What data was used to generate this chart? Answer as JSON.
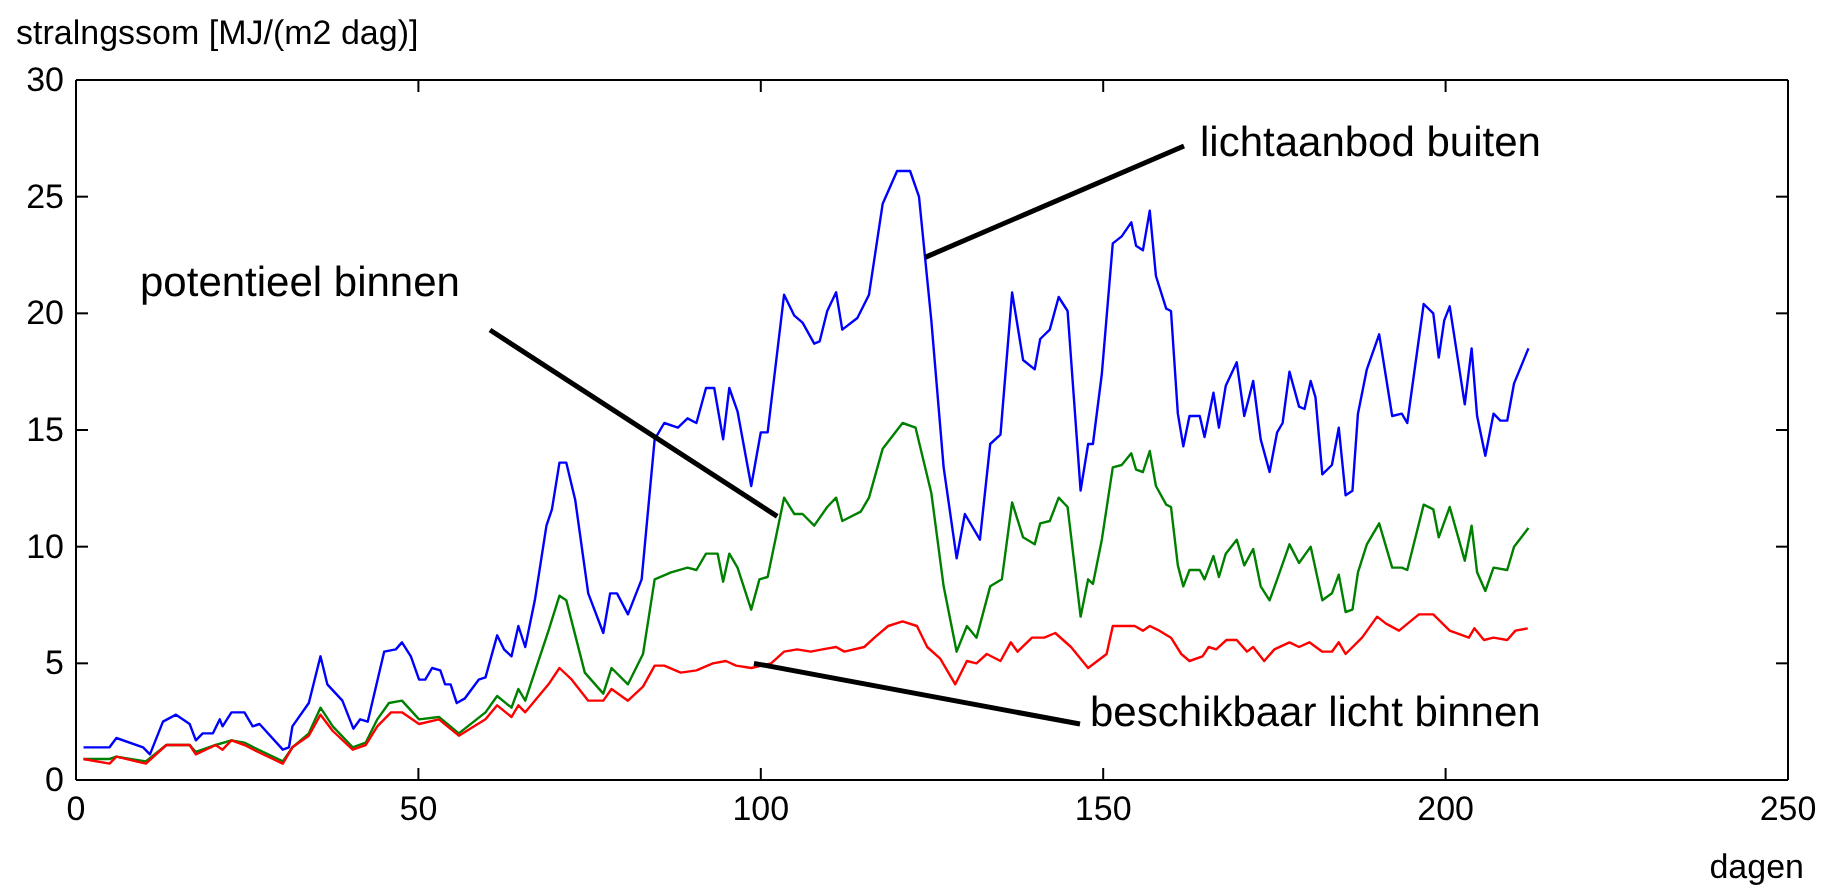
{
  "chart_data": {
    "type": "line",
    "ylabel": "stralngssom [MJ/(m2 dag)]",
    "xlabel": "dagen",
    "xlim": [
      0,
      250
    ],
    "xticks": [
      0,
      50,
      100,
      150,
      200,
      250
    ],
    "ylim": [
      0,
      30
    ],
    "yticks": [
      0,
      5,
      10,
      15,
      20,
      25,
      30
    ],
    "grid": false,
    "series": [
      {
        "color": "#0000ff",
        "x": [
          1.1,
          4.9,
          5.9,
          9.8,
          10.8,
          12.7,
          14.6,
          16.6,
          17.5,
          18.5,
          20,
          21,
          21.4,
          22.7,
          24.6,
          25.8,
          26.8,
          30.2,
          31.1,
          31.6,
          34,
          35.7,
          36.7,
          38.9,
          40.5,
          41.5,
          42.6,
          45,
          46.7,
          47.6,
          48.9,
          50.1,
          51,
          52,
          53.2,
          53.9,
          54.7,
          55.6,
          56.8,
          58.8,
          59.8,
          61.5,
          62.5,
          63.6,
          64.6,
          65.6,
          67,
          68.7,
          69.5,
          70.6,
          71.6,
          72.9,
          74.8,
          77,
          78,
          79,
          80.6,
          82.6,
          84.5,
          85.9,
          87.9,
          89.3,
          90.6,
          92,
          93.2,
          94.5,
          95.4,
          96.6,
          98.6,
          100,
          101,
          103.4,
          104.9,
          106.1,
          107.8,
          108.6,
          109.7,
          111,
          111.9,
          114.1,
          115.8,
          117.8,
          119.9,
          121.8,
          123.1,
          124.9,
          126.7,
          128.6,
          129.8,
          132,
          133.5,
          135,
          136.7,
          138.3,
          140,
          140.8,
          142.2,
          143.5,
          144.8,
          146.7,
          147.8,
          148.5,
          149.8,
          151.4,
          152.7,
          154.1,
          154.8,
          155.8,
          156.8,
          157.7,
          159.2,
          159.9,
          160.9,
          161.7,
          162.6,
          164.1,
          164.8,
          166.1,
          166.9,
          167.9,
          169.5,
          170.6,
          171.9,
          173,
          174.3,
          175.4,
          176.2,
          177.2,
          178.6,
          179.4,
          180.3,
          181,
          182,
          183.4,
          184.4,
          185.4,
          186.4,
          187.2,
          188.5,
          190.3,
          192.2,
          193.6,
          194.4,
          196.8,
          198.2,
          199,
          199.8,
          200.6,
          202.8,
          203.8,
          204.6,
          205.8,
          207,
          208,
          209,
          210,
          212.1
        ],
        "values": [
          1.4,
          1.4,
          1.8,
          1.4,
          1.1,
          2.5,
          2.8,
          2.4,
          1.7,
          2,
          2,
          2.6,
          2.3,
          2.9,
          2.9,
          2.3,
          2.4,
          1.3,
          1.4,
          2.3,
          3.3,
          5.3,
          4.1,
          3.4,
          2.2,
          2.6,
          2.5,
          5.5,
          5.6,
          5.9,
          5.3,
          4.3,
          4.3,
          4.8,
          4.7,
          4.1,
          4.1,
          3.3,
          3.5,
          4.3,
          4.4,
          6.2,
          5.6,
          5.3,
          6.6,
          5.7,
          7.7,
          10.9,
          11.6,
          13.6,
          13.6,
          12,
          8,
          6.3,
          8,
          8,
          7.1,
          8.6,
          14.6,
          15.3,
          15.1,
          15.5,
          15.3,
          16.8,
          16.8,
          14.6,
          16.8,
          15.8,
          12.6,
          14.9,
          14.9,
          20.8,
          19.9,
          19.6,
          18.7,
          18.8,
          20.1,
          20.9,
          19.3,
          19.8,
          20.8,
          24.7,
          26.1,
          26.1,
          25,
          19.7,
          13.4,
          9.5,
          11.4,
          10.3,
          14.4,
          14.8,
          20.9,
          18,
          17.6,
          18.9,
          19.3,
          20.7,
          20.1,
          12.4,
          14.4,
          14.4,
          17.4,
          23,
          23.3,
          23.9,
          22.9,
          22.7,
          24.4,
          21.6,
          20.2,
          20.1,
          15.7,
          14.3,
          15.6,
          15.6,
          14.7,
          16.6,
          15.1,
          16.9,
          17.9,
          15.6,
          17.1,
          14.6,
          13.2,
          14.9,
          15.3,
          17.5,
          16,
          15.9,
          17.1,
          16.4,
          13.1,
          13.5,
          15.1,
          12.2,
          12.4,
          15.7,
          17.6,
          19.1,
          15.6,
          15.7,
          15.3,
          20.4,
          20,
          18.1,
          19.7,
          20.3,
          16.1,
          18.5,
          15.6,
          13.9,
          15.7,
          15.4,
          15.4,
          17,
          18.5
        ]
      },
      {
        "color": "#008000",
        "x": [
          1.1,
          4.9,
          5.9,
          10.2,
          13.2,
          16.6,
          17.5,
          20.4,
          22.7,
          24.6,
          26.6,
          30.2,
          31.6,
          34,
          35.7,
          37.5,
          40.4,
          42.3,
          44,
          45.7,
          47.6,
          50.1,
          53,
          55.9,
          59.8,
          61.5,
          63.6,
          64.6,
          65.6,
          69,
          70.6,
          71.6,
          74.3,
          77,
          78.2,
          80.6,
          82.8,
          84.5,
          86.9,
          89.3,
          90.6,
          92,
          93.7,
          94.5,
          95.4,
          96.6,
          98.6,
          99.8,
          101,
          103.4,
          104.9,
          106.1,
          107.8,
          109.7,
          111,
          111.9,
          114.6,
          115.8,
          117.8,
          120.7,
          122.6,
          124.9,
          126.7,
          128.6,
          130.1,
          131.5,
          133.5,
          135.2,
          136.7,
          138.3,
          140,
          140.8,
          142.2,
          143.5,
          144.8,
          146.7,
          147.8,
          148.5,
          149.8,
          151.4,
          152.7,
          154.1,
          154.8,
          155.8,
          156.8,
          157.7,
          159.2,
          159.9,
          160.9,
          161.7,
          162.6,
          164.1,
          164.8,
          166.1,
          166.9,
          167.9,
          169.5,
          170.6,
          171.9,
          173,
          174.3,
          175.4,
          177.2,
          178.6,
          180.3,
          182,
          183.4,
          184.4,
          185.4,
          186.4,
          187.2,
          188.5,
          190.3,
          192.2,
          193.6,
          194.4,
          196.8,
          198.2,
          199,
          200.6,
          202.8,
          203.8,
          204.6,
          205.8,
          207,
          209,
          210,
          212.1
        ],
        "values": [
          0.9,
          0.9,
          1,
          0.8,
          1.5,
          1.5,
          1.2,
          1.5,
          1.7,
          1.6,
          1.3,
          0.8,
          1.4,
          2,
          3.1,
          2.3,
          1.4,
          1.6,
          2.6,
          3.3,
          3.4,
          2.6,
          2.7,
          2,
          2.9,
          3.6,
          3.1,
          3.9,
          3.4,
          6.4,
          7.9,
          7.7,
          4.6,
          3.7,
          4.8,
          4.1,
          5.4,
          8.6,
          8.9,
          9.1,
          9,
          9.7,
          9.7,
          8.5,
          9.7,
          9.1,
          7.3,
          8.6,
          8.7,
          12.1,
          11.4,
          11.4,
          10.9,
          11.7,
          12.1,
          11.1,
          11.5,
          12.1,
          14.2,
          15.3,
          15.1,
          12.3,
          8.3,
          5.5,
          6.6,
          6.1,
          8.3,
          8.6,
          11.9,
          10.4,
          10.1,
          11,
          11.1,
          12.1,
          11.7,
          7,
          8.6,
          8.4,
          10.3,
          13.4,
          13.5,
          14,
          13.3,
          13.2,
          14.1,
          12.6,
          11.8,
          11.7,
          9.2,
          8.3,
          9,
          9,
          8.6,
          9.6,
          8.7,
          9.7,
          10.3,
          9.2,
          9.9,
          8.3,
          7.7,
          8.6,
          10.1,
          9.3,
          10,
          7.7,
          8,
          8.8,
          7.2,
          7.3,
          8.9,
          10.1,
          11,
          9.1,
          9.1,
          9,
          11.8,
          11.6,
          10.4,
          11.7,
          9.4,
          10.9,
          8.9,
          8.1,
          9.1,
          9,
          10,
          10.8
        ]
      },
      {
        "color": "#ff0000",
        "x": [
          1.1,
          4.9,
          5.9,
          10.2,
          13.2,
          16.6,
          17.5,
          20.4,
          21.4,
          22.7,
          24.6,
          26.6,
          30.2,
          31.6,
          34,
          35.7,
          37.5,
          40.4,
          42.3,
          44,
          46,
          47.6,
          50.1,
          53,
          55.9,
          59.8,
          61.5,
          63.6,
          64.6,
          65.6,
          69,
          70.6,
          72.4,
          74.8,
          77,
          78.2,
          80.6,
          82.8,
          84.5,
          85.9,
          88.3,
          90.6,
          93,
          94.9,
          96.4,
          98.6,
          101.5,
          103.4,
          105.3,
          107.3,
          109,
          111,
          112.2,
          115.1,
          116.6,
          118.6,
          120.7,
          122.8,
          124.3,
          126.2,
          128.4,
          130.1,
          131.5,
          133,
          135,
          136.5,
          137.5,
          139.6,
          141.4,
          143,
          145.3,
          147.8,
          150.5,
          151.4,
          154.6,
          155.8,
          156.8,
          158.2,
          159.9,
          161.4,
          162.6,
          164.5,
          165.4,
          166.5,
          168,
          169.5,
          171,
          171.9,
          173.5,
          175,
          177.2,
          178.6,
          180.1,
          182,
          183.4,
          184.4,
          185.4,
          187.8,
          190,
          191.3,
          193.2,
          196.1,
          198.2,
          200.6,
          203.4,
          204.2,
          205.6,
          207,
          209,
          210.2,
          212
        ],
        "values": [
          0.9,
          0.7,
          1,
          0.7,
          1.5,
          1.5,
          1.1,
          1.5,
          1.3,
          1.7,
          1.5,
          1.2,
          0.7,
          1.4,
          1.9,
          2.8,
          2.1,
          1.3,
          1.5,
          2.3,
          2.9,
          2.9,
          2.4,
          2.6,
          1.9,
          2.6,
          3.2,
          2.7,
          3.2,
          2.9,
          4.1,
          4.8,
          4.3,
          3.4,
          3.4,
          3.9,
          3.4,
          4,
          4.9,
          4.9,
          4.6,
          4.7,
          5,
          5.1,
          4.9,
          4.8,
          5,
          5.5,
          5.6,
          5.5,
          5.6,
          5.7,
          5.5,
          5.7,
          6.1,
          6.6,
          6.8,
          6.6,
          5.7,
          5.2,
          4.1,
          5.1,
          5,
          5.4,
          5.1,
          5.9,
          5.5,
          6.1,
          6.1,
          6.3,
          5.7,
          4.8,
          5.4,
          6.6,
          6.6,
          6.4,
          6.6,
          6.4,
          6.1,
          5.4,
          5.1,
          5.3,
          5.7,
          5.6,
          6,
          6,
          5.5,
          5.7,
          5.1,
          5.6,
          5.9,
          5.7,
          5.9,
          5.5,
          5.5,
          5.9,
          5.4,
          6.1,
          7,
          6.7,
          6.4,
          7.1,
          7.1,
          6.4,
          6.1,
          6.5,
          6,
          6.1,
          6,
          6.4,
          6.5
        ]
      }
    ],
    "annotations": [
      {
        "text": "lichtaanbod buiten",
        "x": 124,
        "y": 22.4
      },
      {
        "text": "potentieel binnen",
        "x": 102.4,
        "y": 11.3
      },
      {
        "text": "beschikbaar licht binnen",
        "x": 99,
        "y": 5
      }
    ]
  }
}
